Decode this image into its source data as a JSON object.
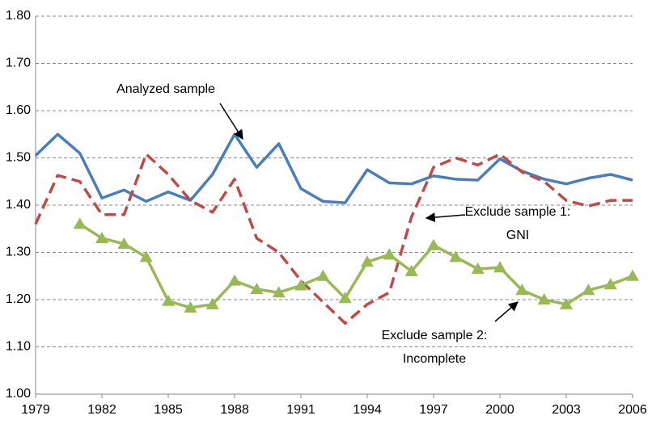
{
  "chart_data": {
    "type": "line",
    "x": [
      1979,
      1980,
      1981,
      1982,
      1983,
      1984,
      1985,
      1986,
      1987,
      1988,
      1989,
      1990,
      1991,
      1992,
      1993,
      1994,
      1995,
      1996,
      1997,
      1998,
      1999,
      2000,
      2001,
      2002,
      2003,
      2004,
      2005,
      2006
    ],
    "series": [
      {
        "color": "#4a7ebb",
        "dash": false,
        "marker": false,
        "values": [
          1.505,
          1.55,
          1.51,
          1.415,
          1.432,
          1.408,
          1.428,
          1.41,
          1.465,
          1.55,
          1.48,
          1.53,
          1.435,
          1.408,
          1.405,
          1.475,
          1.447,
          1.445,
          1.462,
          1.455,
          1.453,
          1.498,
          1.472,
          1.455,
          1.445,
          1.457,
          1.465,
          1.453
        ]
      },
      {
        "color": "#be4b48",
        "dash": true,
        "marker": false,
        "values": [
          1.36,
          1.463,
          1.45,
          1.38,
          1.38,
          1.508,
          1.465,
          1.41,
          1.385,
          1.455,
          1.33,
          1.3,
          1.24,
          1.195,
          1.15,
          1.19,
          1.215,
          1.375,
          1.48,
          1.5,
          1.485,
          1.508,
          1.47,
          1.45,
          1.41,
          1.398,
          1.41,
          1.41
        ]
      },
      {
        "color": "#98b954",
        "dash": false,
        "marker": true,
        "values": [
          null,
          null,
          1.36,
          1.33,
          1.318,
          1.29,
          1.197,
          1.183,
          1.19,
          1.24,
          1.222,
          1.215,
          1.23,
          1.25,
          1.203,
          1.28,
          1.295,
          1.26,
          1.315,
          1.29,
          1.265,
          1.268,
          1.22,
          1.2,
          1.19,
          1.22,
          1.232,
          1.25
        ]
      }
    ],
    "annotations": [
      {
        "lines": [
          "Analyzed sample"
        ]
      },
      {
        "lines": [
          "Exclude sample 1:",
          "GNI"
        ]
      },
      {
        "lines": [
          "Exclude sample 2:",
          "Incomplete"
        ]
      }
    ],
    "xlim": [
      1979,
      2006
    ],
    "xticks": [
      1979,
      1982,
      1985,
      1988,
      1991,
      1994,
      1997,
      2000,
      2003,
      2006
    ],
    "ylim": [
      1.0,
      1.8
    ],
    "yticks": [
      {
        "value": 1.0,
        "label": "1.00"
      },
      {
        "value": 1.1,
        "label": "1.10"
      },
      {
        "value": 1.2,
        "label": "1.20"
      },
      {
        "value": 1.3,
        "label": "1.30"
      },
      {
        "value": 1.4,
        "label": "1.40"
      },
      {
        "value": 1.5,
        "label": "1.50"
      },
      {
        "value": 1.6,
        "label": "1.60"
      },
      {
        "value": 1.7,
        "label": "1.70"
      },
      {
        "value": 1.8,
        "label": "1.80"
      }
    ],
    "grid": true
  }
}
